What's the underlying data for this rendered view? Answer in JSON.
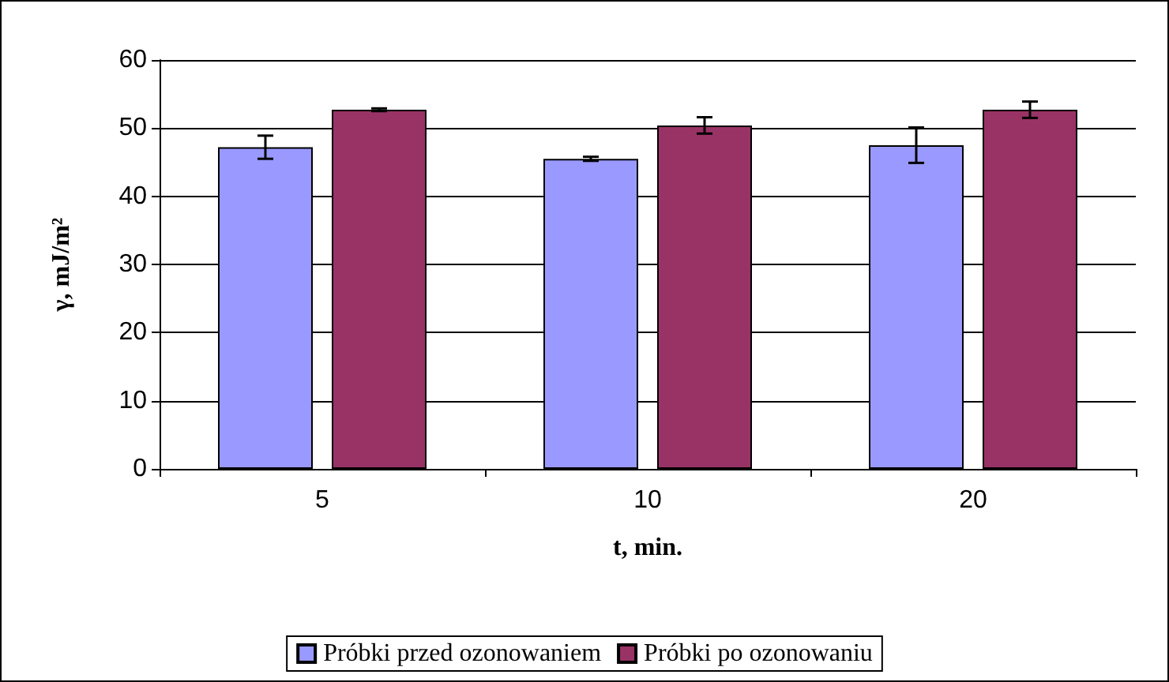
{
  "chart_data": {
    "type": "bar",
    "xlabel": "t, min.",
    "ylabel": "γ, mJ/m²",
    "categories": [
      "5",
      "10",
      "20"
    ],
    "series": [
      {
        "name": "Próbki przed ozonowaniem",
        "color": "#9999ff",
        "values": [
          47.2,
          45.5,
          47.5
        ],
        "errors": [
          1.7,
          0.3,
          2.6
        ]
      },
      {
        "name": "Próbki po ozonowaniu",
        "color": "#993366",
        "values": [
          52.7,
          50.4,
          52.7
        ],
        "errors": [
          0.2,
          1.2,
          1.2
        ]
      }
    ],
    "ylim": [
      0,
      60
    ],
    "yticks": [
      0,
      10,
      20,
      30,
      40,
      50,
      60
    ],
    "grid": "y",
    "legend": "bottom"
  }
}
